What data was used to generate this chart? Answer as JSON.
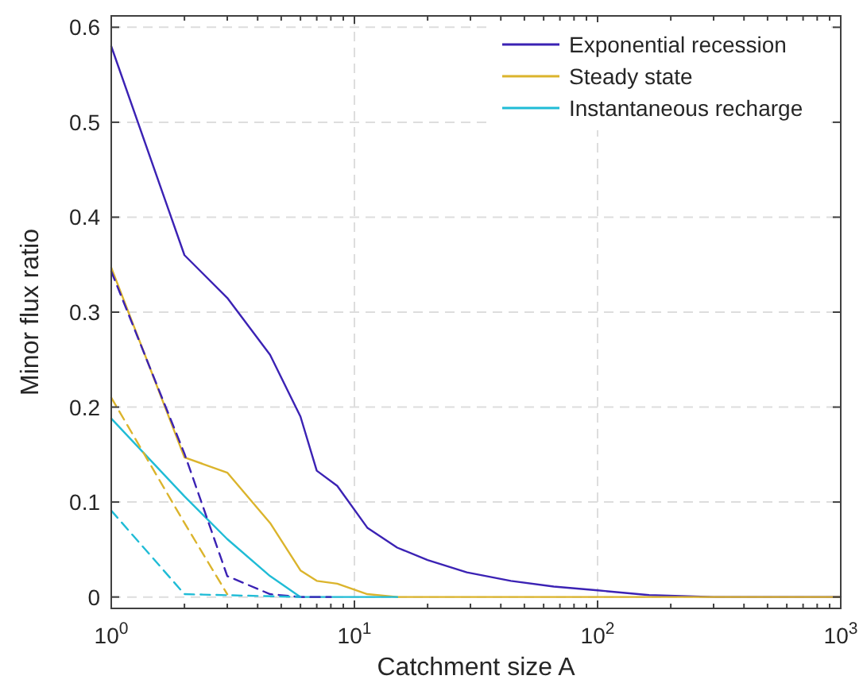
{
  "chart_data": {
    "type": "line",
    "xlabel": "Catchment size A",
    "ylabel": "Minor flux ratio",
    "log": "x",
    "grid": true,
    "legend": "top right",
    "line_style": "solid",
    "xlim": [
      1,
      1000
    ],
    "ylim": [
      -0.012,
      0.612
    ],
    "xticks": [
      {
        "value": 1,
        "label": "10$^{0}$"
      },
      {
        "value": 2,
        "label": null
      },
      {
        "value": 3,
        "label": null
      },
      {
        "value": 4,
        "label": null
      },
      {
        "value": 5,
        "label": null
      },
      {
        "value": 6,
        "label": null
      },
      {
        "value": 7,
        "label": null
      },
      {
        "value": 8,
        "label": null
      },
      {
        "value": 9,
        "label": null
      },
      {
        "value": 10,
        "label": "10$^{1}$"
      },
      {
        "value": 20,
        "label": null
      },
      {
        "value": 30,
        "label": null
      },
      {
        "value": 40,
        "label": null
      },
      {
        "value": 50,
        "label": null
      },
      {
        "value": 60,
        "label": null
      },
      {
        "value": 70,
        "label": null
      },
      {
        "value": 80,
        "label": null
      },
      {
        "value": 90,
        "label": null
      },
      {
        "value": 100,
        "label": "10$^{2}$"
      },
      {
        "value": 200,
        "label": null
      },
      {
        "value": 300,
        "label": null
      },
      {
        "value": 400,
        "label": null
      },
      {
        "value": 500,
        "label": null
      },
      {
        "value": 600,
        "label": null
      },
      {
        "value": 700,
        "label": null
      },
      {
        "value": 800,
        "label": null
      },
      {
        "value": 900,
        "label": null
      },
      {
        "value": 1000,
        "label": "10$^{3}$"
      }
    ],
    "yticks": [
      0,
      0.1,
      0.2,
      0.3,
      0.4,
      0.5,
      0.6
    ],
    "series": [
      {
        "name": "Exponential recession",
        "color": "#3b22b4",
        "x": [
          1,
          2,
          3,
          4.5,
          6,
          7,
          8.5,
          11.3,
          15,
          20,
          29,
          44,
          66,
          100,
          163,
          300,
          1000
        ],
        "values": [
          0.58,
          0.36,
          0.315,
          0.255,
          0.19,
          0.133,
          0.117,
          0.073,
          0.052,
          0.039,
          0.026,
          0.017,
          0.011,
          0.007,
          0.002,
          0,
          0
        ]
      },
      {
        "name": "Steady state",
        "color": "#dbb42c",
        "x": [
          1,
          2,
          3,
          4.5,
          6,
          7,
          8.5,
          11.3,
          15,
          1000
        ],
        "values": [
          0.347,
          0.147,
          0.131,
          0.078,
          0.028,
          0.017,
          0.014,
          0.003,
          0,
          0
        ]
      },
      {
        "name": "Instantaneous recharge",
        "color": "#20bcd6",
        "x": [
          1,
          2,
          3,
          4.5,
          6,
          15
        ],
        "values": [
          0.188,
          0.106,
          0.061,
          0.022,
          0,
          0
        ]
      },
      {
        "color": "#3b22b4",
        "line_style": "dashed",
        "x": [
          1,
          2,
          3,
          4.5,
          6,
          8
        ],
        "values": [
          0.343,
          0.151,
          0.022,
          0.003,
          0,
          0
        ]
      },
      {
        "color": "#dbb42c",
        "line_style": "dashed",
        "x": [
          1,
          2,
          3
        ],
        "values": [
          0.21,
          0.078,
          0.003
        ]
      },
      {
        "color": "#20bcd6",
        "line_style": "dashed",
        "x": [
          1,
          2,
          6
        ],
        "values": [
          0.091,
          0.003,
          0
        ]
      }
    ]
  }
}
